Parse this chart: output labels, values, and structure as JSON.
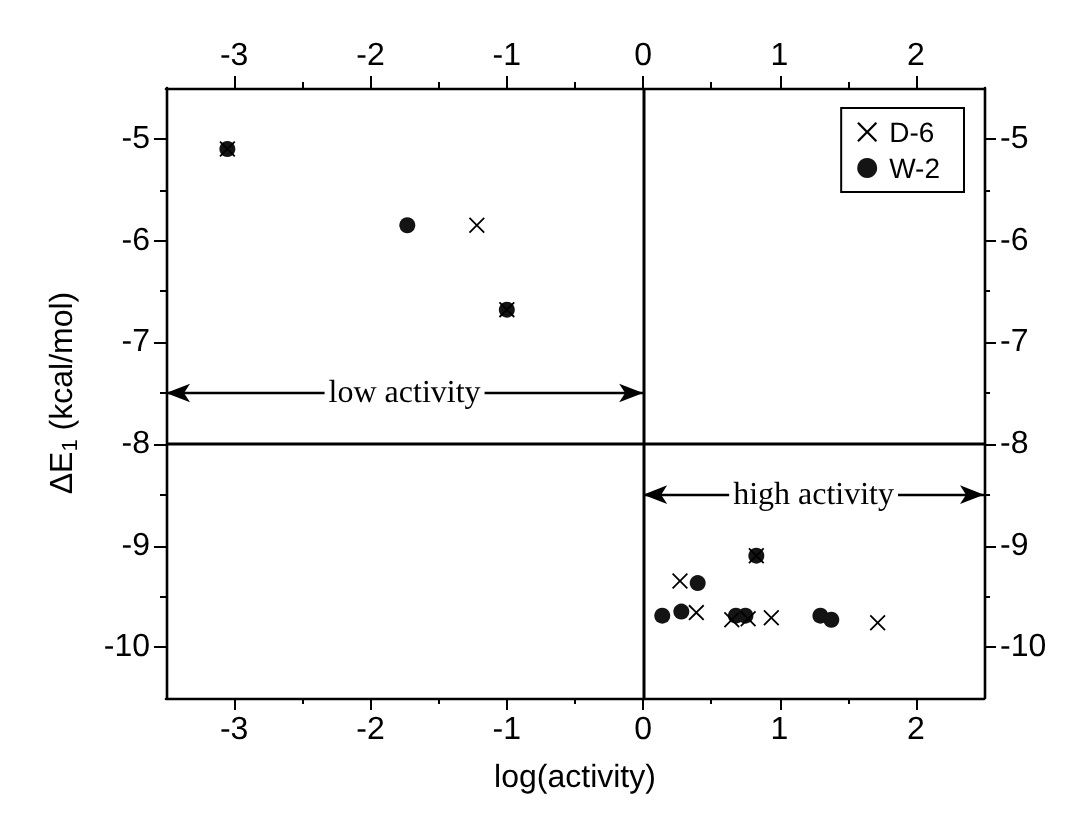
{
  "chart_data": {
    "type": "scatter",
    "xlabel": "log(activity)",
    "ylabel": "ΔE$_{1}$ (kcal/mol)",
    "xlim": [
      -3.5,
      2.5
    ],
    "xticks": [
      -3,
      -2,
      -1,
      0,
      1,
      2
    ],
    "x2lim": [
      -3.5,
      2.5
    ],
    "x2ticks": [
      -3,
      -2,
      -1,
      0,
      1,
      2
    ],
    "ylim": [
      -10.5,
      -4.5
    ],
    "yticks": [
      -10,
      -9,
      -8,
      -7,
      -6,
      -5
    ],
    "y2lim": [
      -10.5,
      -4.5
    ],
    "y2ticks": [
      -10,
      -9,
      -8,
      -7,
      -6,
      -5
    ],
    "series": [
      {
        "name": "D-6",
        "color": "#000000",
        "marker": "cross",
        "x": [
          -3.05,
          -1.22,
          -1.0,
          0.83,
          0.27,
          0.39,
          0.65,
          0.77,
          0.94,
          1.72
        ],
        "values": [
          -5.1,
          -5.85,
          -6.68,
          -9.1,
          -9.35,
          -9.66,
          -9.73,
          -9.72,
          -9.71,
          -9.76
        ]
      },
      {
        "name": "W-2",
        "color": "#141414",
        "marker": "circle",
        "x": [
          -3.05,
          -1.73,
          -1.0,
          0.83,
          0.4,
          0.14,
          0.28,
          0.68,
          0.75,
          1.3,
          1.38
        ],
        "values": [
          -5.1,
          -5.85,
          -6.68,
          -9.1,
          -9.37,
          -9.69,
          -9.65,
          -9.69,
          -9.69,
          -9.69,
          -9.73
        ]
      }
    ],
    "ref_lines": [
      {
        "axis": "x",
        "value": 0
      },
      {
        "axis": "y",
        "value": -8
      }
    ],
    "annotations": [
      "low activity",
      "high activity"
    ],
    "legend": "top right",
    "grid": false
  }
}
